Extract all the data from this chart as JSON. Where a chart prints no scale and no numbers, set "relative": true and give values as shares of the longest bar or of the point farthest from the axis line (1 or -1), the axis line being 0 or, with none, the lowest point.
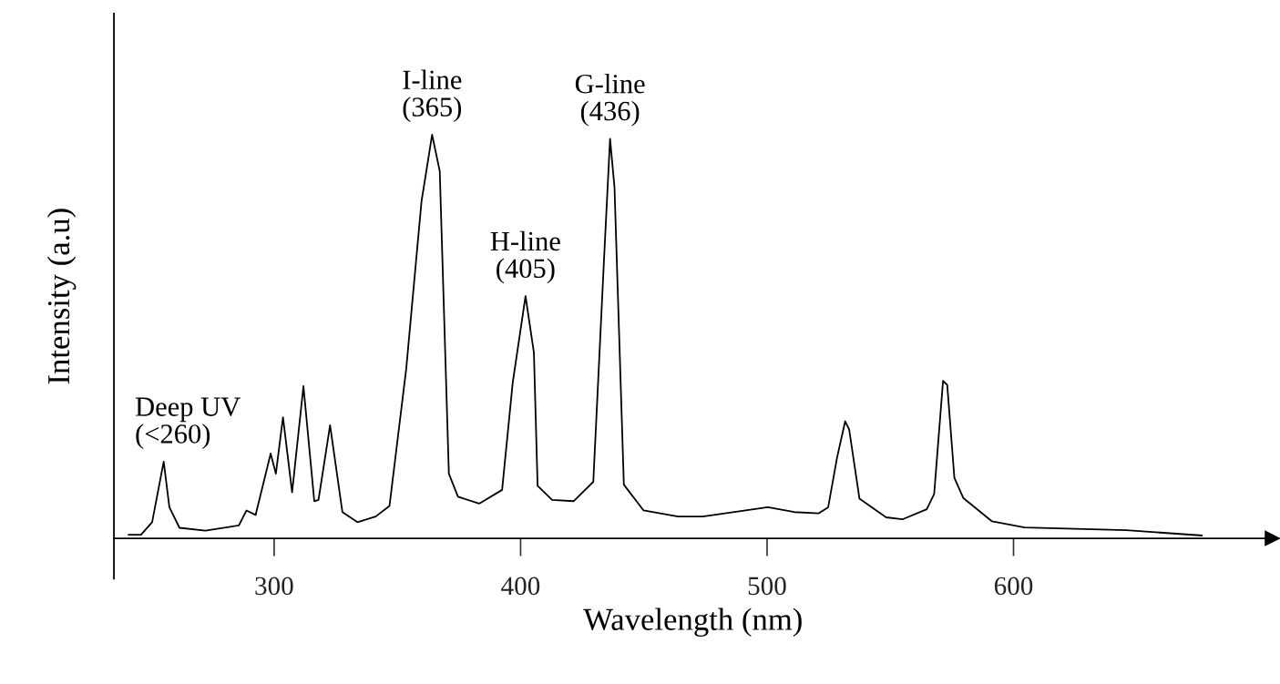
{
  "chart_data": {
    "type": "line",
    "xlabel": "Wavelength (nm)",
    "ylabel": "Intensity (a.u)",
    "relative": true,
    "xlim": [
      235,
      705
    ],
    "xticks": [
      300,
      400,
      500,
      600
    ],
    "grid": false,
    "legend": false,
    "marker": "none",
    "line_style": "solid",
    "series": [
      {
        "color": "#000000",
        "x": [
          241,
          246,
          250.5,
          255.2,
          257.5,
          261.6,
          272.1,
          285.7,
          288.8,
          292.5,
          298.6,
          300.7,
          303.6,
          307.3,
          311.9,
          316.3,
          318,
          322.7,
          327.7,
          333.8,
          341.2,
          346.8,
          353.6,
          359.8,
          364.1,
          367.2,
          370.9,
          374.6,
          383.2,
          392.5,
          396.8,
          402,
          405.4,
          406.9,
          412.8,
          421.5,
          429.5,
          433.8,
          436.3,
          438.1,
          441.9,
          449.9,
          463.9,
          473.9,
          500.3,
          511,
          521,
          524.8,
          528.4,
          531.7,
          533.3,
          537.5,
          548.3,
          554.9,
          564.8,
          567.8,
          571.4,
          573.1,
          576,
          579.6,
          591.3,
          604.5,
          645.8,
          676.4
        ],
        "values": [
          0.009,
          0.009,
          0.04,
          0.19,
          0.077,
          0.026,
          0.019,
          0.032,
          0.069,
          0.058,
          0.21,
          0.16,
          0.3,
          0.114,
          0.377,
          0.092,
          0.095,
          0.28,
          0.065,
          0.04,
          0.054,
          0.08,
          0.42,
          0.835,
          1.0,
          0.91,
          0.16,
          0.103,
          0.086,
          0.12,
          0.385,
          0.6,
          0.46,
          0.13,
          0.095,
          0.092,
          0.14,
          0.685,
          0.99,
          0.87,
          0.133,
          0.069,
          0.054,
          0.054,
          0.077,
          0.065,
          0.062,
          0.077,
          0.2,
          0.29,
          0.27,
          0.098,
          0.052,
          0.047,
          0.072,
          0.11,
          0.39,
          0.38,
          0.15,
          0.1,
          0.042,
          0.027,
          0.02,
          0.007
        ]
      }
    ],
    "annotations": [
      {
        "text": "Deep UV\n(<260)",
        "x": 255.2,
        "y": 0.19
      },
      {
        "text": "I-line\n(365)",
        "x": 364.1,
        "y": 1.0
      },
      {
        "text": "H-line\n(405)",
        "x": 402,
        "y": 0.6
      },
      {
        "text": "G-line\n(436)",
        "x": 436.3,
        "y": 0.99
      }
    ]
  }
}
